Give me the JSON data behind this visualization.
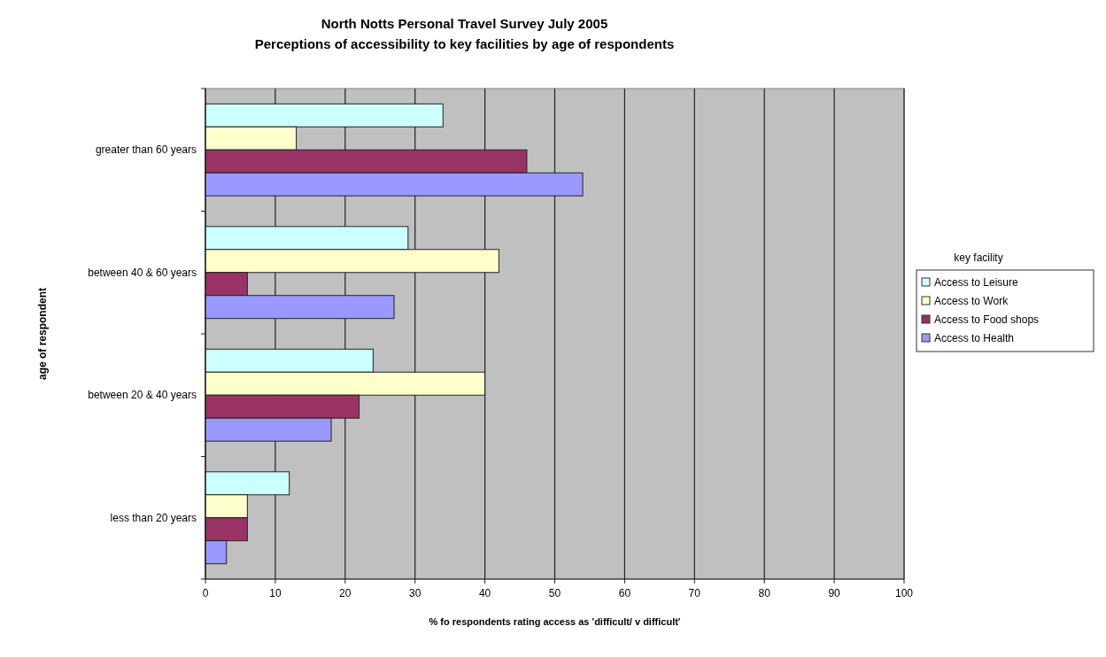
{
  "chart_data": {
    "type": "bar",
    "orientation": "horizontal",
    "title": "North Notts Personal Travel Survey July 2005",
    "subtitle": "Perceptions of accessibility to key facilities by age of respondents",
    "xlabel": "% fo respondents rating access as 'difficult/ v difficult'",
    "ylabel": "age of respondent",
    "legend_title": "key facility",
    "categories": [
      "greater than 60 years",
      "between 40 & 60 years",
      "between 20 & 40 years",
      "less than 20 years"
    ],
    "series": [
      {
        "name": "Access to Leisure",
        "color": "#ccffff",
        "values": [
          34,
          29,
          24,
          12
        ]
      },
      {
        "name": "Access to Work",
        "color": "#ffffcc",
        "values": [
          13,
          42,
          40,
          6
        ]
      },
      {
        "name": "Access to Food shops",
        "color": "#993366",
        "values": [
          46,
          6,
          22,
          6
        ]
      },
      {
        "name": "Access to Health",
        "color": "#9999ff",
        "values": [
          54,
          27,
          18,
          3
        ]
      }
    ],
    "xlim": [
      0,
      100
    ],
    "xticks": [
      0,
      10,
      20,
      30,
      40,
      50,
      60,
      70,
      80,
      90,
      100
    ],
    "grid": "x",
    "legend": "right"
  }
}
